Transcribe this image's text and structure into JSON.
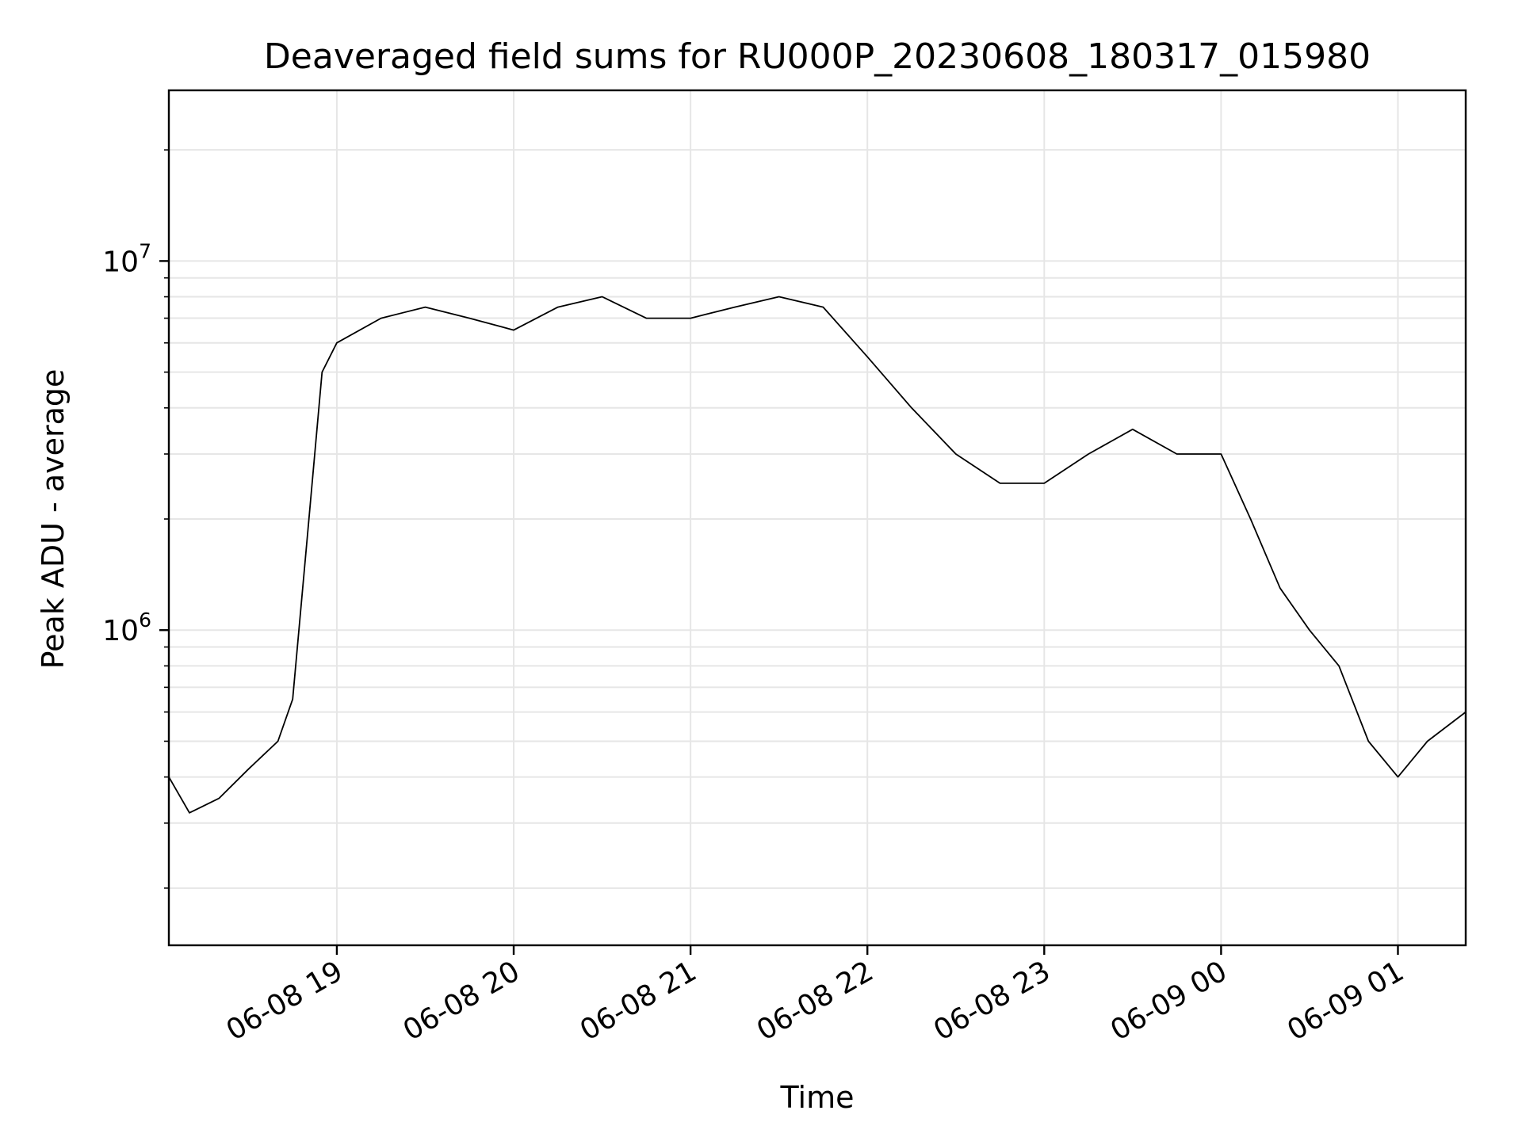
{
  "chart_data": {
    "type": "line",
    "title": "Deaveraged field sums for RU000P_20230608_180317_015980",
    "xlabel": "Time",
    "ylabel": "Peak ADU - average",
    "yscale": "log",
    "grid": true,
    "legend": "none",
    "line_color": "#000000",
    "grid_color": "#e6e6e6",
    "xlim": [
      "2023-06-08 18:03",
      "2023-06-09 01:23"
    ],
    "ylim": [
      140000,
      29000000
    ],
    "x_ticks": [
      {
        "value": "2023-06-08 19:00",
        "label": "06-08 19"
      },
      {
        "value": "2023-06-08 20:00",
        "label": "06-08 20"
      },
      {
        "value": "2023-06-08 21:00",
        "label": "06-08 21"
      },
      {
        "value": "2023-06-08 22:00",
        "label": "06-08 22"
      },
      {
        "value": "2023-06-08 23:00",
        "label": "06-08 23"
      },
      {
        "value": "2023-06-09 00:00",
        "label": "06-09 00"
      },
      {
        "value": "2023-06-09 01:00",
        "label": "06-09 01"
      }
    ],
    "y_major_ticks": [
      {
        "value": 1000000,
        "base": "10",
        "exp": "6"
      },
      {
        "value": 10000000,
        "base": "10",
        "exp": "7"
      }
    ],
    "series": [
      {
        "x": [
          "2023-06-08 18:03",
          "2023-06-08 18:10",
          "2023-06-08 18:20",
          "2023-06-08 18:30",
          "2023-06-08 18:40",
          "2023-06-08 18:45",
          "2023-06-08 18:50",
          "2023-06-08 18:55",
          "2023-06-08 19:00",
          "2023-06-08 19:15",
          "2023-06-08 19:30",
          "2023-06-08 19:45",
          "2023-06-08 20:00",
          "2023-06-08 20:15",
          "2023-06-08 20:30",
          "2023-06-08 20:45",
          "2023-06-08 21:00",
          "2023-06-08 21:15",
          "2023-06-08 21:30",
          "2023-06-08 21:45",
          "2023-06-08 22:00",
          "2023-06-08 22:15",
          "2023-06-08 22:30",
          "2023-06-08 22:45",
          "2023-06-08 23:00",
          "2023-06-08 23:15",
          "2023-06-08 23:30",
          "2023-06-08 23:45",
          "2023-06-09 00:00",
          "2023-06-09 00:10",
          "2023-06-09 00:20",
          "2023-06-09 00:30",
          "2023-06-09 00:40",
          "2023-06-09 00:50",
          "2023-06-09 01:00",
          "2023-06-09 01:10",
          "2023-06-09 01:23"
        ],
        "y": [
          400000,
          320000,
          350000,
          420000,
          500000,
          650000,
          1800000,
          5000000,
          6000000,
          7000000,
          7500000,
          7000000,
          6500000,
          7500000,
          8000000,
          7000000,
          7000000,
          7500000,
          8000000,
          7500000,
          5500000,
          4000000,
          3000000,
          2500000,
          2500000,
          3000000,
          3500000,
          3000000,
          3000000,
          2000000,
          1300000,
          1000000,
          800000,
          500000,
          400000,
          500000,
          600000
        ]
      }
    ]
  }
}
